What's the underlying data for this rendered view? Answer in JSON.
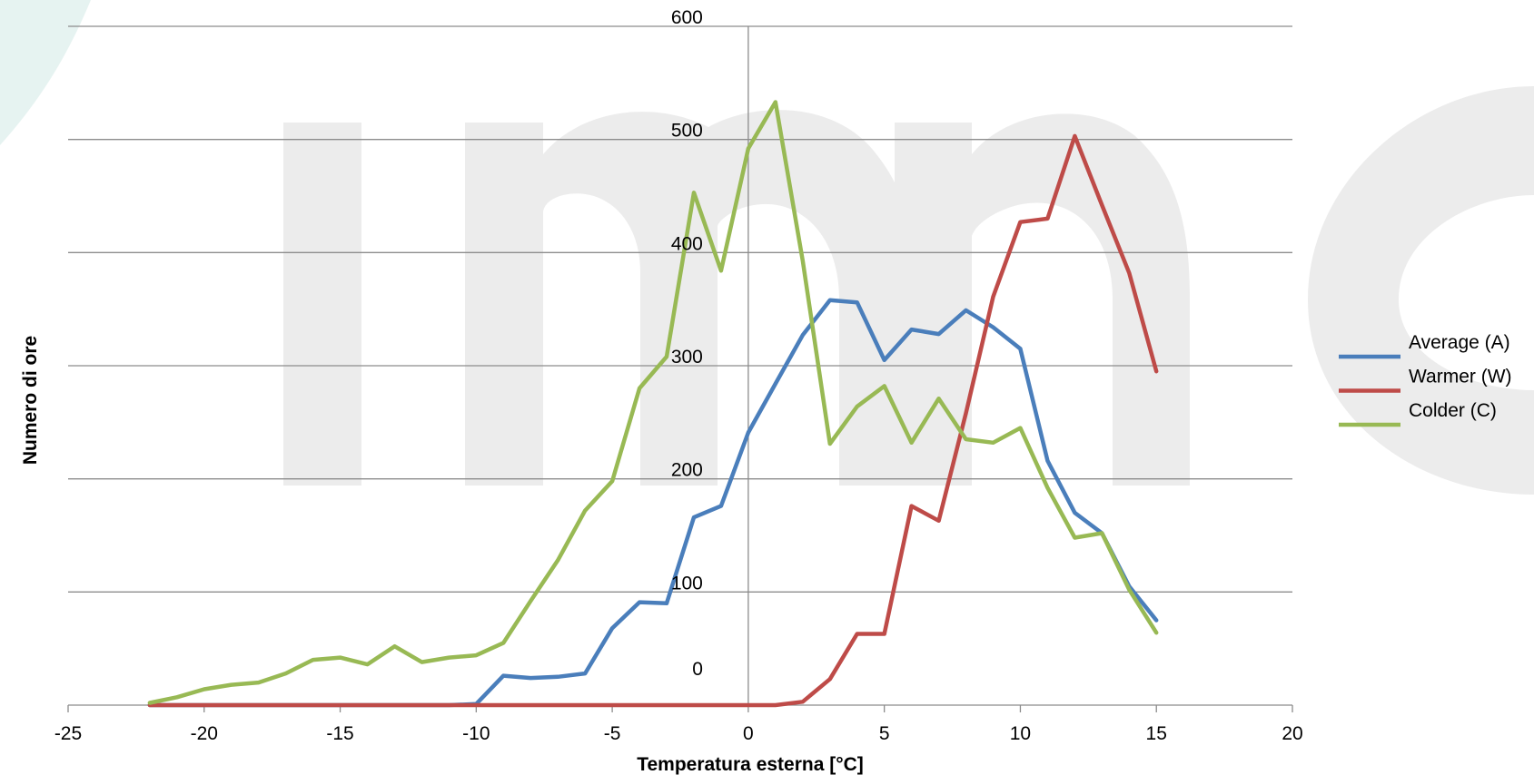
{
  "chart_data": {
    "type": "line",
    "xlabel": "Temperatura esterna [°C]",
    "ylabel": "Numero di ore",
    "xlim": [
      -25,
      20
    ],
    "ylim": [
      0,
      600
    ],
    "x_ticks": [
      -25,
      -20,
      -15,
      -10,
      -5,
      0,
      5,
      10,
      15,
      20
    ],
    "y_ticks": [
      0,
      100,
      200,
      300,
      400,
      500,
      600
    ],
    "grid": true,
    "legend_position": "right",
    "legend_entries": [
      "Average (A)",
      "Warmer (W)",
      "Colder (C)"
    ],
    "series": [
      {
        "name": "Average (A)",
        "color": "#4a7ebb",
        "points": [
          [
            -22,
            0
          ],
          [
            -21,
            0
          ],
          [
            -20,
            0
          ],
          [
            -19,
            0
          ],
          [
            -18,
            0
          ],
          [
            -17,
            0
          ],
          [
            -16,
            0
          ],
          [
            -15,
            0
          ],
          [
            -14,
            0
          ],
          [
            -13,
            0
          ],
          [
            -12,
            0
          ],
          [
            -11,
            0
          ],
          [
            -10,
            1
          ],
          [
            -9,
            26
          ],
          [
            -8,
            24
          ],
          [
            -7,
            25
          ],
          [
            -6,
            28
          ],
          [
            -5,
            68
          ],
          [
            -4,
            91
          ],
          [
            -3,
            90
          ],
          [
            -2,
            166
          ],
          [
            -1,
            176
          ],
          [
            0,
            241
          ],
          [
            1,
            284
          ],
          [
            2,
            327
          ],
          [
            3,
            358
          ],
          [
            4,
            356
          ],
          [
            5,
            305
          ],
          [
            6,
            332
          ],
          [
            7,
            328
          ],
          [
            8,
            349
          ],
          [
            9,
            334
          ],
          [
            10,
            315
          ],
          [
            11,
            216
          ],
          [
            12,
            170
          ],
          [
            13,
            152
          ],
          [
            14,
            105
          ],
          [
            15,
            75
          ]
        ]
      },
      {
        "name": "Colder (C)",
        "color": "#be4b48",
        "points": [
          [
            -22,
            0
          ],
          [
            -21,
            0
          ],
          [
            -20,
            0
          ],
          [
            -19,
            0
          ],
          [
            -18,
            0
          ],
          [
            -17,
            0
          ],
          [
            -16,
            0
          ],
          [
            -15,
            0
          ],
          [
            -14,
            0
          ],
          [
            -13,
            0
          ],
          [
            -12,
            0
          ],
          [
            -11,
            0
          ],
          [
            -10,
            0
          ],
          [
            -9,
            0
          ],
          [
            -8,
            0
          ],
          [
            -7,
            0
          ],
          [
            -6,
            0
          ],
          [
            -5,
            0
          ],
          [
            -4,
            0
          ],
          [
            -3,
            0
          ],
          [
            -2,
            0
          ],
          [
            -1,
            0
          ],
          [
            0,
            0
          ],
          [
            1,
            0
          ],
          [
            2,
            3
          ],
          [
            3,
            23
          ],
          [
            4,
            63
          ],
          [
            5,
            63
          ],
          [
            6,
            176
          ],
          [
            7,
            163
          ],
          [
            8,
            258
          ],
          [
            9,
            361
          ],
          [
            10,
            427
          ],
          [
            11,
            430
          ],
          [
            12,
            503
          ],
          [
            13,
            442
          ],
          [
            14,
            382
          ],
          [
            15,
            295
          ]
        ]
      },
      {
        "name": "",
        "color": "#98b954",
        "points": [
          [
            -22,
            2
          ],
          [
            -21,
            7
          ],
          [
            -20,
            14
          ],
          [
            -19,
            18
          ],
          [
            -18,
            20
          ],
          [
            -17,
            28
          ],
          [
            -16,
            40
          ],
          [
            -15,
            42
          ],
          [
            -14,
            36
          ],
          [
            -13,
            52
          ],
          [
            -12,
            38
          ],
          [
            -11,
            42
          ],
          [
            -10,
            44
          ],
          [
            -9,
            55
          ],
          [
            -8,
            92
          ],
          [
            -7,
            128
          ],
          [
            -6,
            172
          ],
          [
            -5,
            198
          ],
          [
            -4,
            280
          ],
          [
            -3,
            308
          ],
          [
            -2,
            453
          ],
          [
            -1,
            384
          ],
          [
            0,
            492
          ],
          [
            1,
            533
          ],
          [
            2,
            393
          ],
          [
            3,
            231
          ],
          [
            4,
            264
          ],
          [
            5,
            282
          ],
          [
            6,
            232
          ],
          [
            7,
            271
          ],
          [
            8,
            235
          ],
          [
            9,
            232
          ],
          [
            10,
            245
          ],
          [
            11,
            192
          ],
          [
            12,
            148
          ],
          [
            13,
            152
          ],
          [
            14,
            102
          ],
          [
            15,
            64
          ]
        ]
      }
    ]
  },
  "colors": {
    "background": "#ffffff",
    "gridline": "#8c8c8c",
    "axis": "#8c8c8c",
    "watermark": "#ececec",
    "watermark_accent": "#e8f4f2"
  }
}
